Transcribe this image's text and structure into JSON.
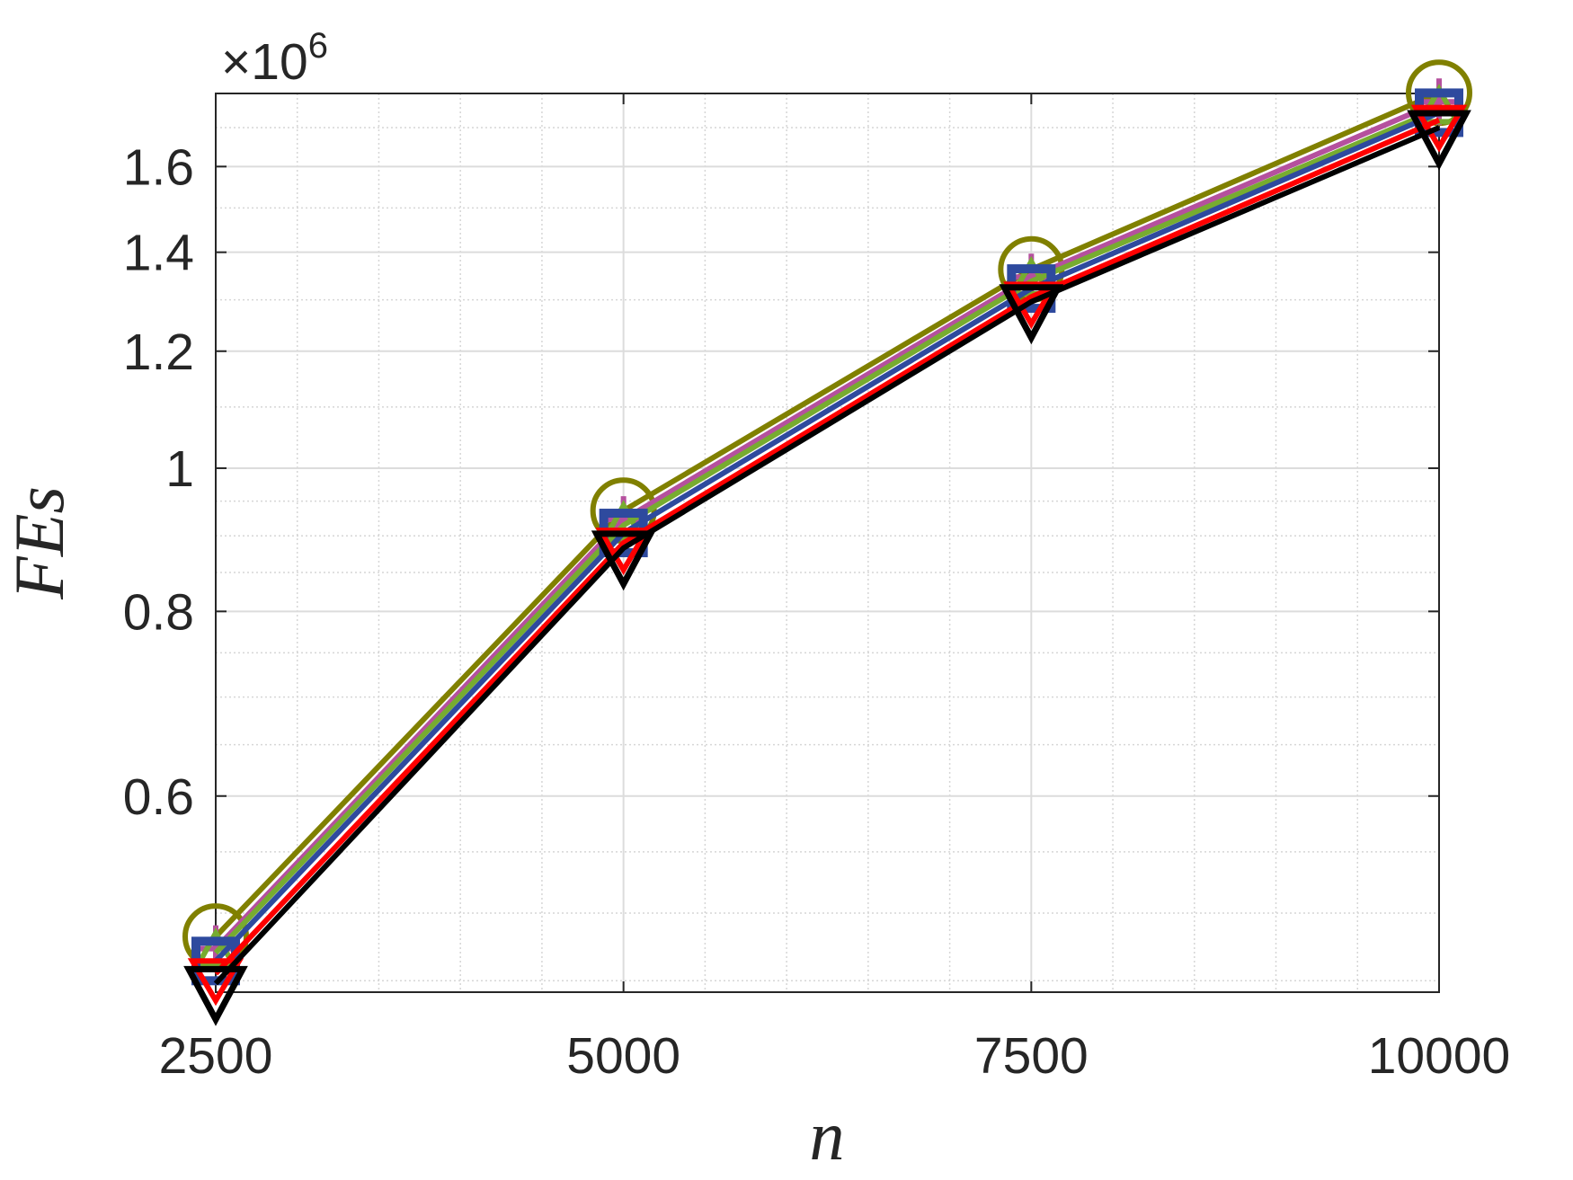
{
  "chart_data": {
    "type": "line",
    "xlabel": "n",
    "ylabel": "FEs",
    "y_multiplier": {
      "base": "×10",
      "exponent": "6"
    },
    "x": [
      2500,
      5000,
      7500,
      10000
    ],
    "xlim": [
      2500,
      10000
    ],
    "xticks": [
      2500,
      5000,
      7500,
      10000
    ],
    "xminorticks": [
      3000,
      3500,
      4000,
      4500,
      5500,
      6000,
      6500,
      7000,
      8000,
      8500,
      9000,
      9500
    ],
    "ylim": [
      0.442,
      1.793
    ],
    "yscale": "log",
    "yticks": [
      0.6,
      0.8,
      1,
      1.2,
      1.4,
      1.6
    ],
    "yminorticks": [
      0.45,
      0.5,
      0.55,
      0.65,
      0.7,
      0.75,
      0.85,
      0.9,
      0.95,
      1.1,
      1.3,
      1.5,
      1.7
    ],
    "grid": true,
    "minor_grid": true,
    "series": [
      {
        "color": "#808000",
        "marker": "circle",
        "values": [
          0.482,
          0.936,
          1.363,
          1.795
        ]
      },
      {
        "color": "#b5509e",
        "marker": "plus",
        "values": [
          0.473,
          0.923,
          1.347,
          1.77
        ]
      },
      {
        "color": "#77ac30",
        "marker": "triangle-up",
        "values": [
          0.47,
          0.915,
          1.338,
          1.75
        ]
      },
      {
        "color": "#2e4a9e",
        "marker": "square",
        "values": [
          0.464,
          0.904,
          1.323,
          1.74
        ]
      },
      {
        "color": "#ff0000",
        "marker": "triangle-down-small",
        "values": [
          0.455,
          0.89,
          1.306,
          1.72
        ]
      },
      {
        "color": "#000000",
        "marker": "triangle-down",
        "values": [
          0.448,
          0.883,
          1.296,
          1.7
        ]
      }
    ]
  }
}
